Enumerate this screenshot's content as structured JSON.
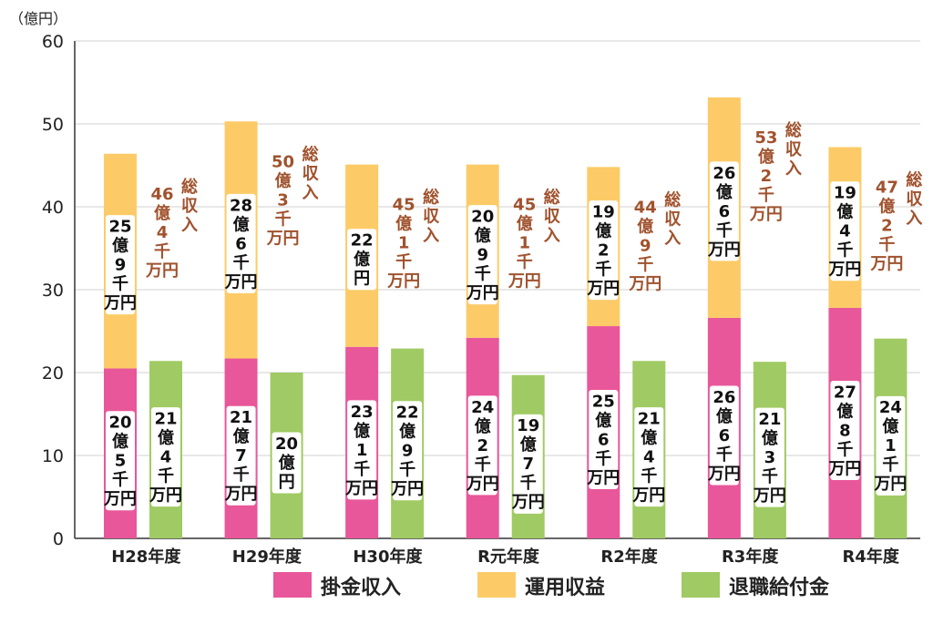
{
  "chart_data": {
    "type": "bar",
    "stacked_and_grouped": true,
    "unit_label": "（億円）",
    "ylim": [
      0,
      60
    ],
    "yticks": [
      0,
      10,
      20,
      30,
      40,
      50,
      60
    ],
    "grid": true,
    "legend_position": "bottom",
    "categories": [
      "H28年度",
      "H29年度",
      "H30年度",
      "R元年度",
      "R2年度",
      "R3年度",
      "R4年度"
    ],
    "series": [
      {
        "name": "掛金収入",
        "color": "#e8579a",
        "stack": "income",
        "values": [
          20.5,
          21.7,
          23.1,
          24.2,
          25.6,
          26.6,
          27.8
        ],
        "labels": [
          "20億5千万円",
          "21億7千万円",
          "23億1千万円",
          "24億2千万円",
          "25億6千万円",
          "26億6千万円",
          "27億8千万円"
        ]
      },
      {
        "name": "運用収益",
        "color": "#fccb68",
        "stack": "income",
        "values": [
          25.9,
          28.6,
          22,
          20.9,
          19.2,
          26.6,
          19.4
        ],
        "labels": [
          "25億9千万円",
          "28億6千万円",
          "22億円",
          "20億9千万円",
          "19億2千万円",
          "26億6千万円",
          "19億4千万円"
        ]
      },
      {
        "name": "退職給付金",
        "color": "#a0ca63",
        "stack": "payout",
        "values": [
          21.4,
          20,
          22.9,
          19.7,
          21.4,
          21.3,
          24.1
        ],
        "labels": [
          "21億4千万円",
          "20億円",
          "22億9千万円",
          "19億7千万円",
          "21億4千万円",
          "21億3千万円",
          "24億1千万円"
        ]
      }
    ],
    "totals": {
      "prefix_label": "総収入",
      "values": [
        46.4,
        50.3,
        45.1,
        45.1,
        44.9,
        53.2,
        47.2
      ],
      "labels": [
        "46億4千万円",
        "50億3千万円",
        "45億1千万円",
        "45億1千万円",
        "44億9千万円",
        "53億2千万円",
        "47億2千万円"
      ]
    }
  }
}
